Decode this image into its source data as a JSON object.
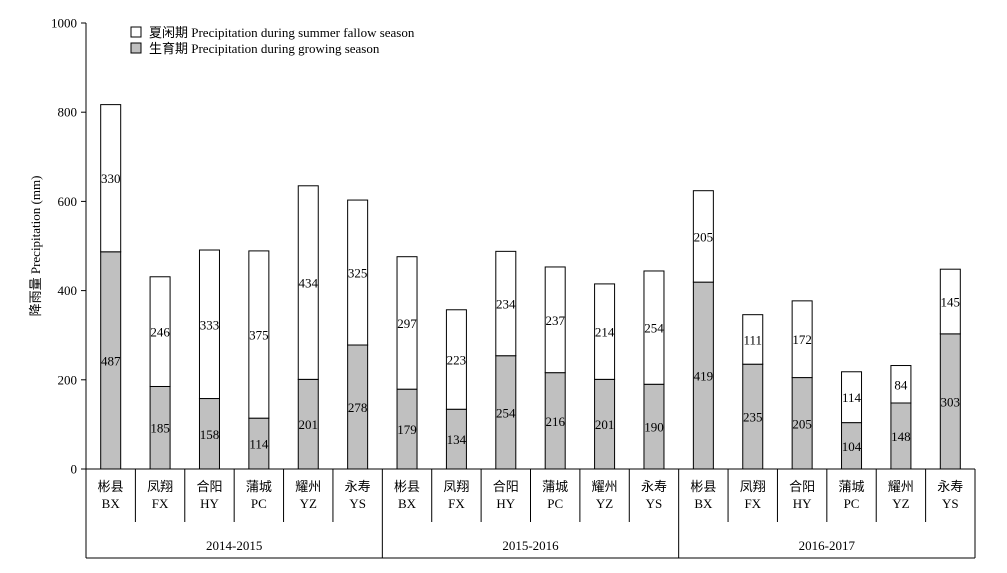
{
  "chart_data": {
    "type": "bar",
    "stacked": true,
    "ylabel": "降雨量 Precipitation (mm)",
    "ylim": [
      0,
      1000
    ],
    "yticks": [
      "0",
      "200",
      "400",
      "600",
      "800",
      "1000"
    ],
    "legend": {
      "placement": "top-left",
      "entries": [
        {
          "key": "summer",
          "label": "夏闲期 Precipitation during summer fallow season",
          "color": "#ffffff"
        },
        {
          "key": "growing",
          "label": "生育期 Precipitation during growing season",
          "color": "#c0c0c0"
        }
      ]
    },
    "groups": [
      "2014-2015",
      "2015-2016",
      "2016-2017"
    ],
    "sites": [
      {
        "cn": "彬县",
        "en": "BX"
      },
      {
        "cn": "凤翔",
        "en": "FX"
      },
      {
        "cn": "合阳",
        "en": "HY"
      },
      {
        "cn": "蒲城",
        "en": "PC"
      },
      {
        "cn": "耀州",
        "en": "YZ"
      },
      {
        "cn": "永寿",
        "en": "YS"
      }
    ],
    "series": [
      {
        "name": "生育期 Precipitation during growing season",
        "key": "growing",
        "color": "#c0c0c0",
        "values": [
          487,
          185,
          158,
          114,
          201,
          278,
          179,
          134,
          254,
          216,
          201,
          190,
          419,
          235,
          205,
          104,
          148,
          303
        ]
      },
      {
        "name": "夏闲期 Precipitation during summer fallow season",
        "key": "summer",
        "color": "#ffffff",
        "values": [
          330,
          246,
          333,
          375,
          434,
          325,
          297,
          223,
          234,
          237,
          214,
          254,
          205,
          111,
          172,
          114,
          84,
          145
        ]
      }
    ]
  }
}
